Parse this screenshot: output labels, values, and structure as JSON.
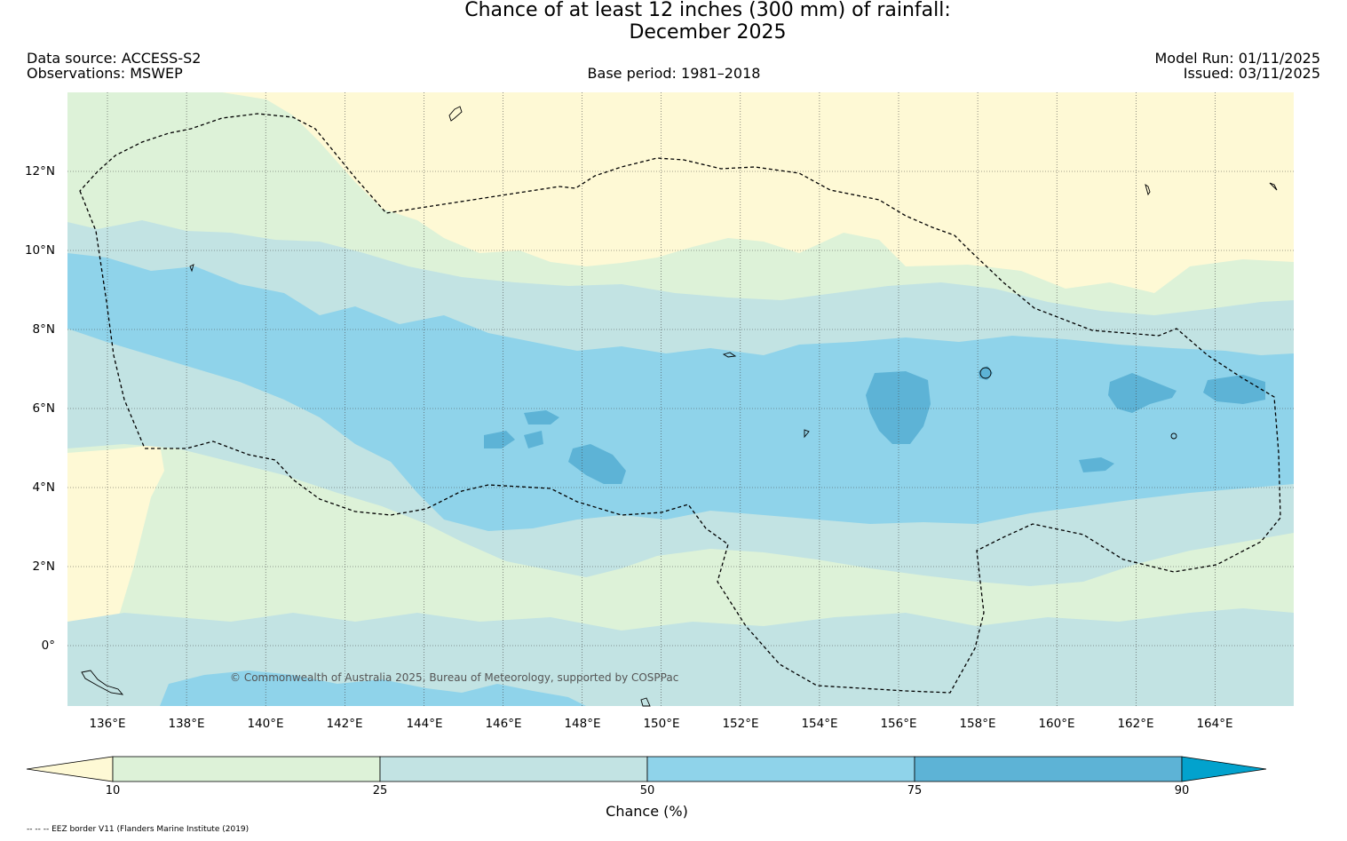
{
  "header": {
    "title_line1": "Chance of at least 12 inches (300  mm) of rainfall:",
    "title_line2": "December 2025",
    "data_source": "Data source: ACCESS-S2",
    "observations": "Observations: MSWEP",
    "base_period": "Base period: 1981–2018",
    "model_run": "Model Run: 01/11/2025",
    "issued": "Issued: 03/11/2025"
  },
  "map": {
    "lat_ticks": [
      "12°N",
      "10°N",
      "8°N",
      "6°N",
      "4°N",
      "2°N",
      "0°"
    ],
    "lon_ticks": [
      "136°E",
      "138°E",
      "140°E",
      "142°E",
      "144°E",
      "146°E",
      "148°E",
      "150°E",
      "152°E",
      "154°E",
      "156°E",
      "158°E",
      "160°E",
      "162°E",
      "164°E"
    ],
    "copyright": "© Commonwealth of Australia 2025, Bureau of Meteorology, supported by COSPPac",
    "eez_note": "-- -- -- EEZ border V11 (Flanders Marine Institute (2019)"
  },
  "colorbar": {
    "title": "Chance (%)",
    "labels": [
      "10",
      "25",
      "50",
      "75",
      "90"
    ],
    "colors": {
      "below_10": "#fef9d5",
      "c10_25": "#ddf2d8",
      "c25_50": "#c2e3e3",
      "c50_75": "#8fd3ea",
      "c75_90": "#5db3d6",
      "above_90": "#02a2cd"
    }
  }
}
